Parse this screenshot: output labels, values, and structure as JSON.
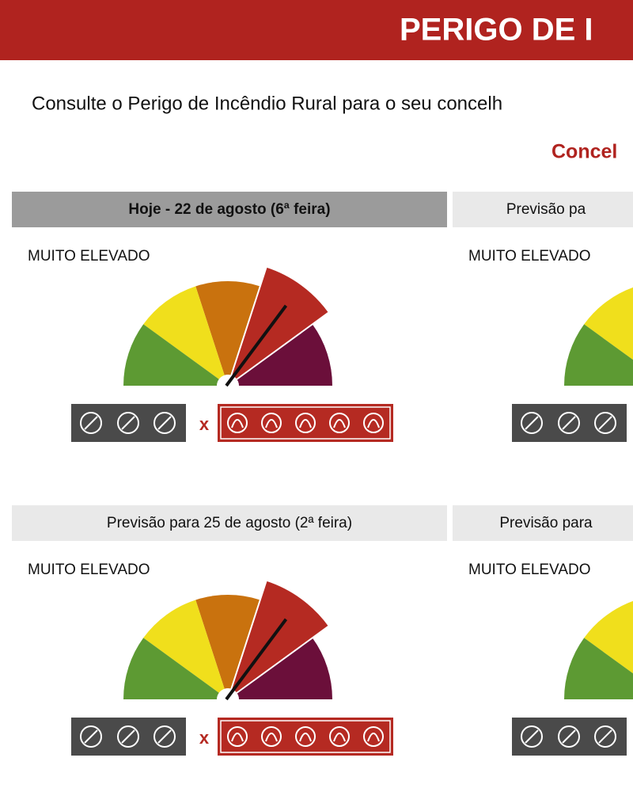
{
  "header": {
    "title": "PERIGO DE I"
  },
  "intro": "Consulte o Perigo de Incêndio Rural para o seu concelh",
  "county_label": "Concel",
  "restriction_separator": "x",
  "panels": [
    {
      "heading": "Hoje - 22 de agosto (6ª feira)",
      "level": "MUITO ELEVADO"
    },
    {
      "heading": "Previsão pa",
      "level": "MUITO ELEVADO"
    },
    {
      "heading": "Previsão para 25 de agosto (2ª feira)",
      "level": "MUITO ELEVADO"
    },
    {
      "heading": "Previsão para",
      "level": "MUITO ELEVADO"
    }
  ]
}
